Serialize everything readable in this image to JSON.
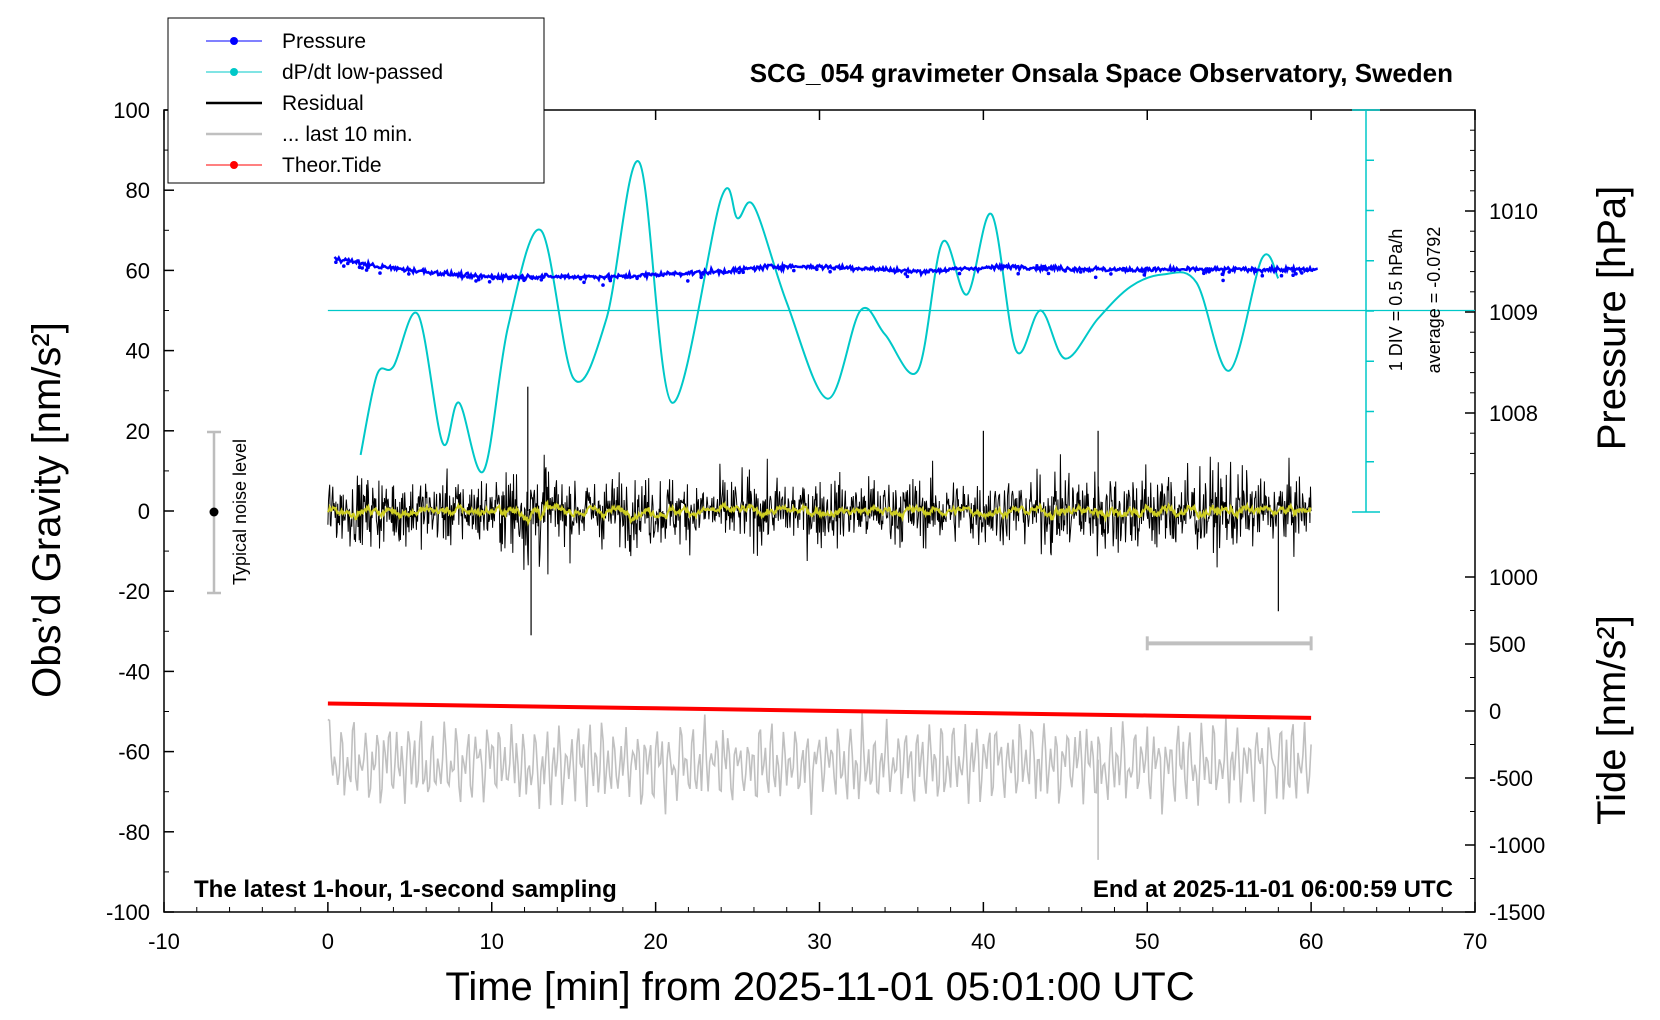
{
  "title": "SCG_054 gravimeter Onsala Space Observatory, Sweden",
  "footer_left": "The latest 1-hour, 1-second sampling",
  "footer_right": "End at 2025-11-01 06:00:59 UTC",
  "legend": [
    {
      "label": "Pressure",
      "color": "#0000ff",
      "style": "line-dot"
    },
    {
      "label": "dP/dt low-passed",
      "color": "#00c8c8",
      "style": "line-dot"
    },
    {
      "label": "Residual",
      "color": "#000000",
      "style": "line"
    },
    {
      "label": "... last 10 min.",
      "color": "#c0c0c0",
      "style": "line"
    },
    {
      "label": "Theor.Tide",
      "color": "#ff0000",
      "style": "line-dot"
    }
  ],
  "noise_label": "Typical noise level",
  "dpdt_labels": {
    "div": "1 DIV = 0.5 hPa/h",
    "average": "average = -0.0792"
  },
  "chart_data": {
    "type": "line",
    "xlabel": "Time [min] from 2025-11-01 05:01:00 UTC",
    "xlim": [
      -10,
      70
    ],
    "xticks": [
      "-10",
      "0",
      "10",
      "20",
      "30",
      "40",
      "50",
      "60",
      "70"
    ],
    "ylabel_left": "Obs’d Gravity [nm/s²]",
    "ylim_left": [
      -100,
      100
    ],
    "yticks_left": [
      "100",
      "80",
      "60",
      "40",
      "20",
      "0",
      "-20",
      "-40",
      "-60",
      "-80",
      "-100"
    ],
    "ylabel_right_top": "Pressure [hPa]",
    "yticks_right_top": [
      "1010",
      "1009",
      "1008"
    ],
    "ylabel_right_bottom": "Tide [nm/s²]",
    "yticks_right_bottom": [
      "1000",
      "500",
      "0",
      "-500",
      "-1000",
      "-1500"
    ],
    "series": [
      {
        "name": "Pressure",
        "unit": "hPa",
        "x": [
          0,
          3,
          6,
          9,
          12,
          15,
          18,
          21,
          24,
          27,
          30,
          33,
          36,
          39,
          42,
          45,
          48,
          51,
          54,
          57,
          60
        ],
        "values": [
          1009.55,
          1009.45,
          1009.4,
          1009.35,
          1009.35,
          1009.35,
          1009.35,
          1009.38,
          1009.4,
          1009.45,
          1009.45,
          1009.43,
          1009.4,
          1009.43,
          1009.45,
          1009.43,
          1009.42,
          1009.42,
          1009.42,
          1009.42,
          1009.42
        ]
      },
      {
        "name": "dP/dt low-passed",
        "unit": "gravity axis units",
        "x": [
          2,
          3,
          4,
          5.5,
          7,
          8,
          9.5,
          11,
          13,
          15,
          17,
          19,
          21,
          24,
          25,
          26,
          28,
          30.5,
          32.5,
          34,
          36,
          37.5,
          39,
          40.5,
          42,
          43.5,
          45,
          47,
          49,
          51,
          53,
          55,
          57,
          58
        ],
        "values": [
          14,
          34,
          36,
          49,
          17,
          27,
          10,
          46,
          70,
          33,
          48,
          87,
          27,
          78,
          73,
          76,
          52,
          28,
          50,
          44,
          35,
          67,
          54,
          74,
          40,
          50,
          38,
          48,
          56,
          59,
          57,
          35,
          63,
          58
        ]
      },
      {
        "name": "Residual",
        "unit": "nm/s²",
        "x": [
          0,
          12,
          12.5,
          40,
          55,
          58,
          60
        ],
        "values": [
          0,
          31,
          -31,
          20,
          20,
          -25,
          0
        ]
      },
      {
        "name": "... last 10 min.",
        "unit": "nm/s²",
        "x": [
          0,
          8,
          20,
          37,
          47,
          60
        ],
        "values": [
          -52,
          -77,
          -46,
          -77,
          -87,
          -67
        ]
      },
      {
        "name": "Theor.Tide",
        "unit": "nm/s²",
        "x": [
          0,
          10,
          20,
          30,
          40,
          50,
          60
        ],
        "values": [
          -48,
          -48.6,
          -49.2,
          -49.8,
          -50.4,
          -51,
          -51.6
        ]
      }
    ],
    "dpdt_reference_y": 50,
    "last_10min_bar": {
      "x": [
        50,
        60
      ],
      "y": -33
    }
  }
}
